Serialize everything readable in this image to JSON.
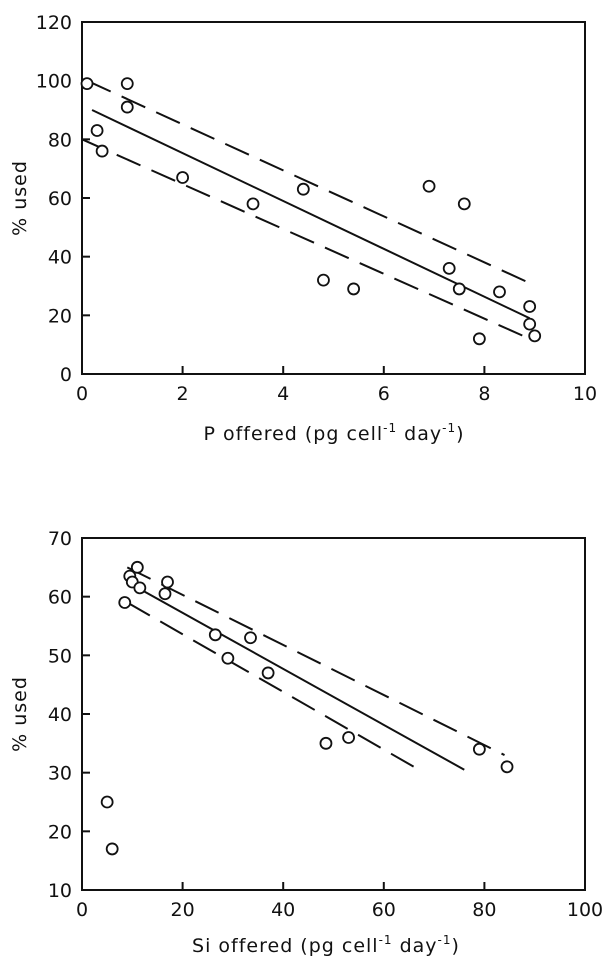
{
  "chart_data": [
    {
      "type": "scatter",
      "xlabel": "P offered (pg cell",
      "xlabel_sup1": "-1",
      "xlabel_mid": " day",
      "xlabel_sup2": "-1",
      "xlabel_end": ")",
      "ylabel": "% used",
      "xlim": [
        0,
        10
      ],
      "ylim": [
        0,
        120
      ],
      "xticks": [
        0,
        2,
        4,
        6,
        8,
        10
      ],
      "yticks": [
        0,
        20,
        40,
        60,
        80,
        100,
        120
      ],
      "grid": false,
      "points": [
        {
          "x": 0.1,
          "y": 99
        },
        {
          "x": 0.3,
          "y": 83
        },
        {
          "x": 0.4,
          "y": 76
        },
        {
          "x": 0.9,
          "y": 99
        },
        {
          "x": 0.9,
          "y": 91
        },
        {
          "x": 2.0,
          "y": 67
        },
        {
          "x": 3.4,
          "y": 58
        },
        {
          "x": 4.4,
          "y": 63
        },
        {
          "x": 4.8,
          "y": 32
        },
        {
          "x": 5.4,
          "y": 29
        },
        {
          "x": 6.9,
          "y": 64
        },
        {
          "x": 7.3,
          "y": 36
        },
        {
          "x": 7.5,
          "y": 29
        },
        {
          "x": 7.6,
          "y": 58
        },
        {
          "x": 7.9,
          "y": 12
        },
        {
          "x": 8.3,
          "y": 28
        },
        {
          "x": 8.9,
          "y": 23
        },
        {
          "x": 8.9,
          "y": 17
        },
        {
          "x": 9.0,
          "y": 13
        }
      ],
      "regression": {
        "x": [
          0.2,
          8.9
        ],
        "y": [
          90,
          19
        ]
      },
      "upper_band": {
        "x": [
          0.1,
          8.9
        ],
        "y": [
          100,
          31
        ]
      },
      "lower_band": {
        "x": [
          0.0,
          8.9
        ],
        "y": [
          80,
          12
        ]
      }
    },
    {
      "type": "scatter",
      "xlabel": "Si offered (pg cell",
      "xlabel_sup1": "-1",
      "xlabel_mid": " day",
      "xlabel_sup2": "-1",
      "xlabel_end": ")",
      "ylabel": "% used",
      "xlim": [
        0,
        100
      ],
      "ylim": [
        10,
        70
      ],
      "xticks": [
        0,
        20,
        40,
        60,
        80,
        100
      ],
      "yticks": [
        10,
        20,
        30,
        40,
        50,
        60,
        70
      ],
      "grid": false,
      "points": [
        {
          "x": 5,
          "y": 25
        },
        {
          "x": 6,
          "y": 17
        },
        {
          "x": 8.5,
          "y": 59
        },
        {
          "x": 9.5,
          "y": 63.5
        },
        {
          "x": 10,
          "y": 62.5
        },
        {
          "x": 11,
          "y": 65
        },
        {
          "x": 11.5,
          "y": 61.5
        },
        {
          "x": 16.5,
          "y": 60.5
        },
        {
          "x": 17,
          "y": 62.5
        },
        {
          "x": 26.5,
          "y": 53.5
        },
        {
          "x": 29,
          "y": 49.5
        },
        {
          "x": 33.5,
          "y": 53
        },
        {
          "x": 37,
          "y": 47
        },
        {
          "x": 48.5,
          "y": 35
        },
        {
          "x": 53,
          "y": 36
        },
        {
          "x": 79,
          "y": 34
        },
        {
          "x": 84.5,
          "y": 31
        }
      ],
      "regression": {
        "x": [
          9,
          76
        ],
        "y": [
          62.5,
          30.5
        ]
      },
      "upper_band": {
        "x": [
          9,
          84
        ],
        "y": [
          65,
          33
        ]
      },
      "lower_band": {
        "x": [
          9,
          67
        ],
        "y": [
          59,
          30.5
        ]
      }
    }
  ]
}
